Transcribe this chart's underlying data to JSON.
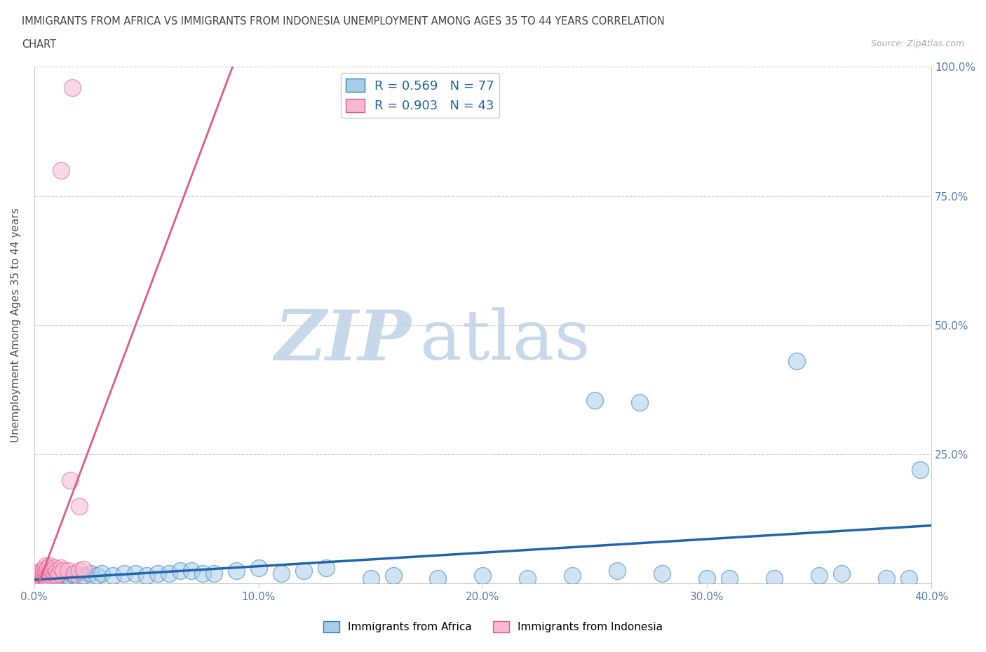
{
  "title_line1": "IMMIGRANTS FROM AFRICA VS IMMIGRANTS FROM INDONESIA UNEMPLOYMENT AMONG AGES 35 TO 44 YEARS CORRELATION",
  "title_line2": "CHART",
  "source_text": "Source: ZipAtlas.com",
  "ylabel": "Unemployment Among Ages 35 to 44 years",
  "xlim": [
    0.0,
    0.4
  ],
  "ylim": [
    0.0,
    1.0
  ],
  "xtick_labels": [
    "0.0%",
    "10.0%",
    "20.0%",
    "30.0%",
    "40.0%"
  ],
  "xtick_vals": [
    0.0,
    0.1,
    0.2,
    0.3,
    0.4
  ],
  "ytick_labels": [
    "25.0%",
    "50.0%",
    "75.0%",
    "100.0%"
  ],
  "ytick_vals": [
    0.25,
    0.5,
    0.75,
    1.0
  ],
  "africa_color": "#a8cde8",
  "africa_edge_color": "#3182bd",
  "indonesia_color": "#f9b8d0",
  "indonesia_edge_color": "#e05c8a",
  "africa_line_color": "#2166ac",
  "indonesia_line_color": "#e05c8a",
  "africa_R": 0.569,
  "africa_N": 77,
  "indonesia_R": 0.903,
  "indonesia_N": 43,
  "watermark_zip": "ZIP",
  "watermark_atlas": "atlas",
  "watermark_color_zip": "#c5d8ea",
  "watermark_color_atlas": "#c5d8ea",
  "background_color": "#ffffff",
  "grid_color": "#c8c8c8",
  "africa_x": [
    0.001,
    0.001,
    0.001,
    0.002,
    0.002,
    0.002,
    0.002,
    0.003,
    0.003,
    0.003,
    0.003,
    0.003,
    0.004,
    0.004,
    0.004,
    0.004,
    0.005,
    0.005,
    0.005,
    0.005,
    0.006,
    0.006,
    0.006,
    0.007,
    0.007,
    0.007,
    0.008,
    0.008,
    0.009,
    0.009,
    0.01,
    0.01,
    0.011,
    0.012,
    0.013,
    0.015,
    0.016,
    0.018,
    0.02,
    0.022,
    0.025,
    0.028,
    0.03,
    0.035,
    0.04,
    0.045,
    0.05,
    0.055,
    0.06,
    0.065,
    0.07,
    0.075,
    0.08,
    0.09,
    0.1,
    0.11,
    0.12,
    0.13,
    0.15,
    0.16,
    0.18,
    0.2,
    0.22,
    0.24,
    0.26,
    0.28,
    0.3,
    0.31,
    0.33,
    0.35,
    0.36,
    0.38,
    0.39,
    0.25,
    0.27,
    0.34,
    0.395
  ],
  "africa_y": [
    0.005,
    0.008,
    0.01,
    0.005,
    0.007,
    0.01,
    0.012,
    0.004,
    0.007,
    0.01,
    0.012,
    0.015,
    0.005,
    0.008,
    0.012,
    0.015,
    0.005,
    0.008,
    0.012,
    0.018,
    0.006,
    0.01,
    0.015,
    0.006,
    0.01,
    0.015,
    0.008,
    0.015,
    0.008,
    0.015,
    0.008,
    0.015,
    0.01,
    0.015,
    0.01,
    0.015,
    0.01,
    0.015,
    0.01,
    0.015,
    0.02,
    0.015,
    0.02,
    0.015,
    0.02,
    0.02,
    0.015,
    0.02,
    0.02,
    0.025,
    0.025,
    0.02,
    0.02,
    0.025,
    0.03,
    0.02,
    0.025,
    0.03,
    0.01,
    0.015,
    0.01,
    0.015,
    0.01,
    0.015,
    0.025,
    0.02,
    0.01,
    0.01,
    0.01,
    0.015,
    0.02,
    0.01,
    0.01,
    0.355,
    0.35,
    0.43,
    0.22
  ],
  "indonesia_x": [
    0.001,
    0.001,
    0.001,
    0.002,
    0.002,
    0.002,
    0.002,
    0.003,
    0.003,
    0.003,
    0.003,
    0.003,
    0.004,
    0.004,
    0.004,
    0.004,
    0.005,
    0.005,
    0.005,
    0.005,
    0.006,
    0.006,
    0.006,
    0.007,
    0.007,
    0.007,
    0.008,
    0.008,
    0.009,
    0.009,
    0.01,
    0.01,
    0.011,
    0.012,
    0.013,
    0.015,
    0.016,
    0.018,
    0.02,
    0.022,
    0.012,
    0.017,
    0.02
  ],
  "indonesia_y": [
    0.006,
    0.01,
    0.015,
    0.005,
    0.01,
    0.015,
    0.02,
    0.006,
    0.01,
    0.015,
    0.02,
    0.025,
    0.008,
    0.015,
    0.02,
    0.028,
    0.01,
    0.018,
    0.025,
    0.035,
    0.01,
    0.018,
    0.03,
    0.012,
    0.02,
    0.035,
    0.015,
    0.025,
    0.018,
    0.03,
    0.015,
    0.025,
    0.02,
    0.03,
    0.025,
    0.025,
    0.2,
    0.02,
    0.025,
    0.028,
    0.8,
    0.96,
    0.15
  ]
}
